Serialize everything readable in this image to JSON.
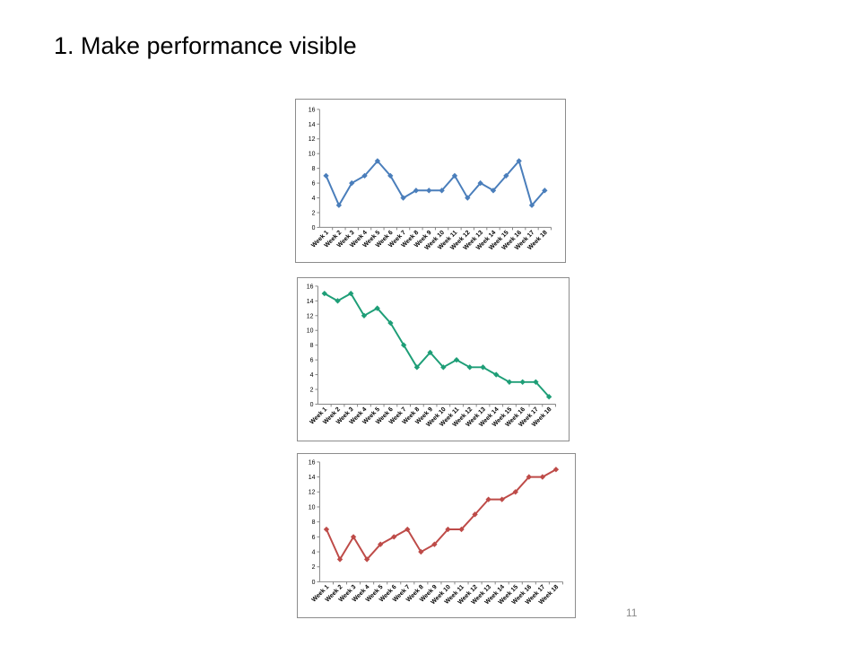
{
  "slide": {
    "title": "1. Make performance visible",
    "page_number": "11"
  },
  "chart_data": [
    {
      "type": "line",
      "ylim": [
        0,
        16
      ],
      "yticks": [
        "0",
        "2",
        "4",
        "6",
        "8",
        "10",
        "12",
        "14",
        "16"
      ],
      "categories": [
        "Week 1",
        "Week 2",
        "Week 3",
        "Week 4",
        "Week 5",
        "Week 6",
        "Week 7",
        "Week 8",
        "Week 9",
        "Week 10",
        "Week 11",
        "Week 12",
        "Week 13",
        "Week 14",
        "Week 15",
        "Week 16",
        "Week 17",
        "Week 18"
      ],
      "series": [
        {
          "values": [
            7,
            3,
            6,
            7,
            9,
            7,
            4,
            5,
            5,
            5,
            7,
            4,
            6,
            5,
            7,
            9,
            3,
            5
          ],
          "color": "#4a7ebb"
        }
      ],
      "marker": "diamond",
      "grid": false,
      "legend": "none"
    },
    {
      "type": "line",
      "ylim": [
        0,
        16
      ],
      "yticks": [
        "0",
        "2",
        "4",
        "6",
        "8",
        "10",
        "12",
        "14",
        "16"
      ],
      "categories": [
        "Week 1",
        "Week 2",
        "Week 3",
        "Week 4",
        "Week 5",
        "Week 6",
        "Week 7",
        "Week 8",
        "Week 9",
        "Week 10",
        "Week 11",
        "Week 12",
        "Week 13",
        "Week 14",
        "Week 15",
        "Week 16",
        "Week 17",
        "Week 18"
      ],
      "series": [
        {
          "values": [
            15,
            14,
            15,
            12,
            13,
            11,
            8,
            5,
            7,
            5,
            6,
            5,
            5,
            4,
            3,
            3,
            3,
            1
          ],
          "color": "#1e9e77"
        }
      ],
      "marker": "diamond",
      "grid": false,
      "legend": "none"
    },
    {
      "type": "line",
      "ylim": [
        0,
        16
      ],
      "yticks": [
        "0",
        "2",
        "4",
        "6",
        "8",
        "10",
        "12",
        "14",
        "16"
      ],
      "categories": [
        "Week 1",
        "Week 2",
        "Week 3",
        "Week 4",
        "Week 5",
        "Week 6",
        "Week 7",
        "Week 8",
        "Week 9",
        "Week 10",
        "Week 11",
        "Week 12",
        "Week 13",
        "Week 14",
        "Week 15",
        "Week 16",
        "Week 17",
        "Week 18"
      ],
      "series": [
        {
          "values": [
            7,
            3,
            6,
            3,
            5,
            6,
            7,
            4,
            5,
            7,
            7,
            9,
            11,
            11,
            12,
            14,
            14,
            15
          ],
          "color": "#be4b48"
        }
      ],
      "marker": "diamond",
      "grid": false,
      "legend": "none"
    }
  ]
}
